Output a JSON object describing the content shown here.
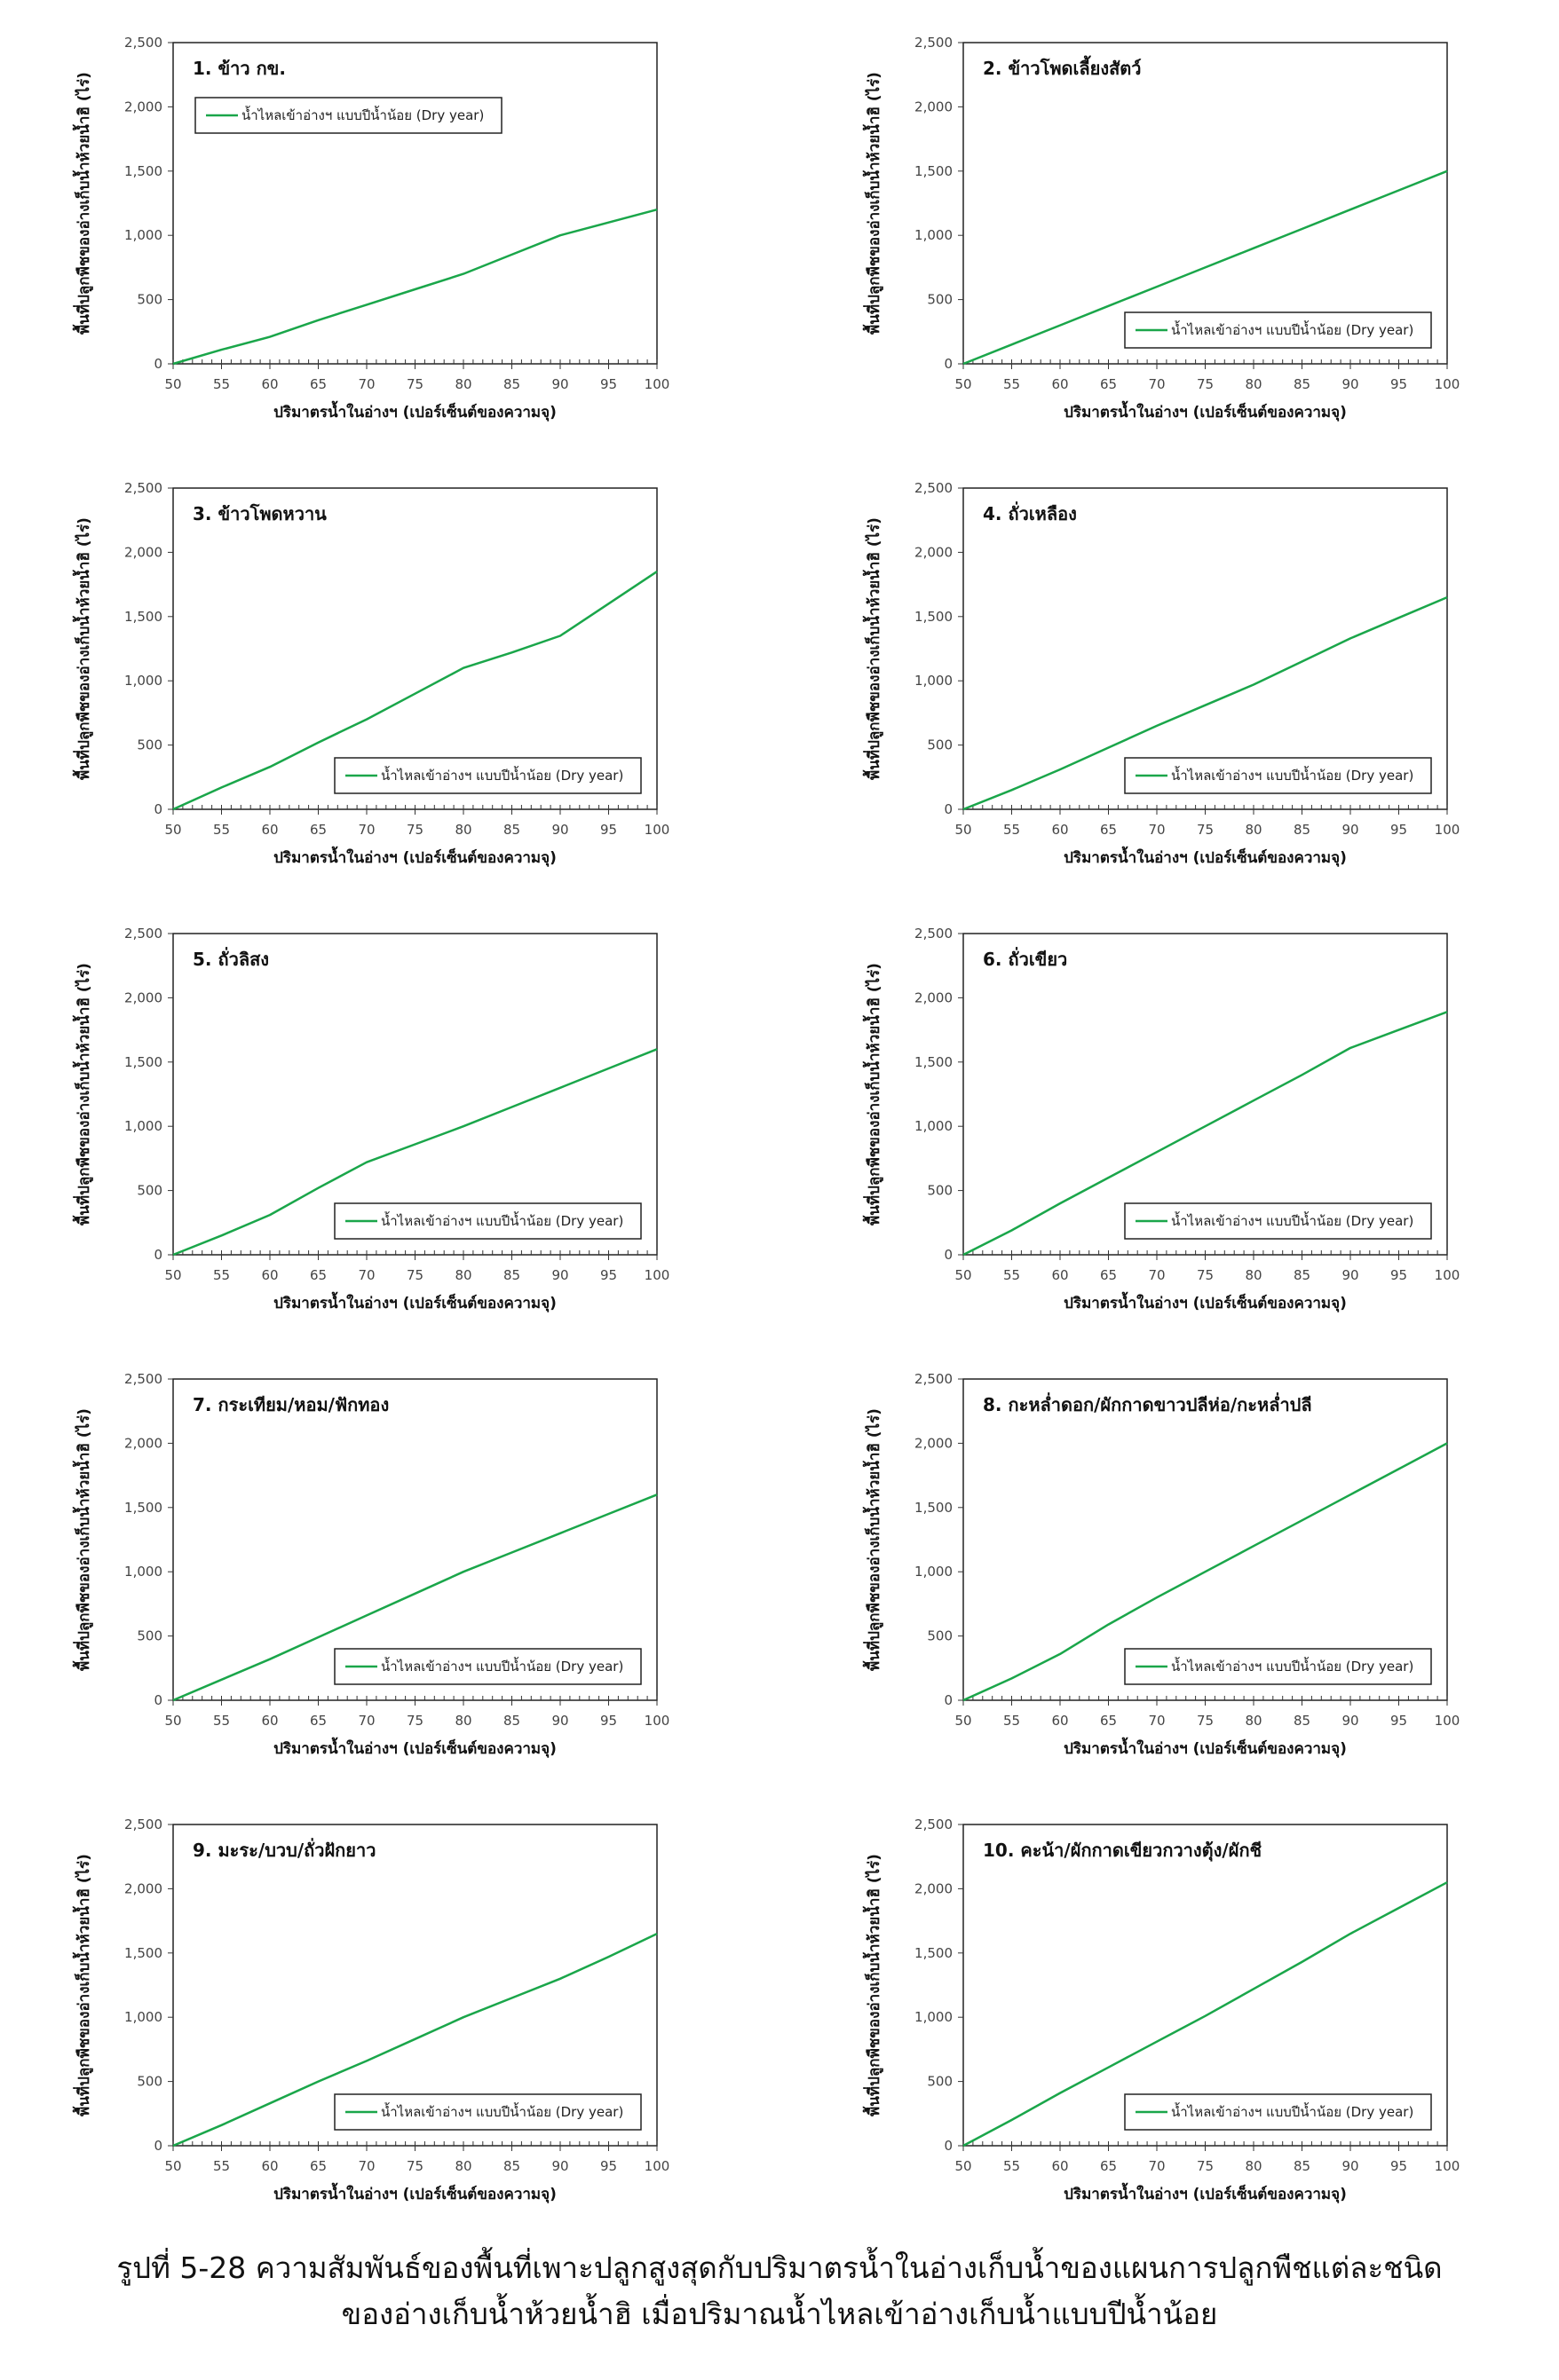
{
  "common": {
    "xlabel": "ปริมาตรน้ำในอ่างฯ (เปอร์เซ็นต์ของความจุ)",
    "ylabel": "พื้นที่ปลูกพืชของอ่างเก็บน้ำห้วยน้ำฮิ (ไร่)",
    "legend_label": "น้ำไหลเข้าอ่างฯ แบบปีน้ำน้อย (Dry year)",
    "line_color": "#1aa64a",
    "x_ticks": [
      "50",
      "55",
      "60",
      "65",
      "70",
      "75",
      "80",
      "85",
      "90",
      "95",
      "100"
    ],
    "y_ticks": [
      "0",
      "500",
      "1,000",
      "1,500",
      "2,000",
      "2,500"
    ]
  },
  "chart_data": [
    {
      "type": "line",
      "title": "1. ข้าว กข.",
      "legend_position": "top-left",
      "xlim": [
        50,
        100
      ],
      "ylim": [
        0,
        2500
      ],
      "x": [
        50,
        55,
        60,
        65,
        70,
        75,
        80,
        85,
        90,
        95,
        100
      ],
      "series": [
        {
          "name": "น้ำไหลเข้าอ่างฯ แบบปีน้ำน้อย (Dry year)",
          "values": [
            0,
            110,
            210,
            340,
            460,
            580,
            700,
            850,
            1000,
            1100,
            1200
          ]
        }
      ]
    },
    {
      "type": "line",
      "title": "2. ข้าวโพดเลี้ยงสัตว์",
      "legend_position": "bottom-right",
      "xlim": [
        50,
        100
      ],
      "ylim": [
        0,
        2500
      ],
      "x": [
        50,
        55,
        60,
        65,
        70,
        75,
        80,
        85,
        90,
        95,
        100
      ],
      "series": [
        {
          "name": "น้ำไหลเข้าอ่างฯ แบบปีน้ำน้อย (Dry year)",
          "values": [
            0,
            150,
            300,
            450,
            600,
            750,
            900,
            1050,
            1200,
            1350,
            1500
          ]
        }
      ]
    },
    {
      "type": "line",
      "title": "3. ข้าวโพดหวาน",
      "legend_position": "bottom-right",
      "xlim": [
        50,
        100
      ],
      "ylim": [
        0,
        2500
      ],
      "x": [
        50,
        55,
        60,
        65,
        70,
        75,
        80,
        85,
        90,
        95,
        100
      ],
      "series": [
        {
          "name": "น้ำไหลเข้าอ่างฯ แบบปีน้ำน้อย (Dry year)",
          "values": [
            0,
            170,
            330,
            520,
            700,
            900,
            1100,
            1220,
            1350,
            1600,
            1850
          ]
        }
      ]
    },
    {
      "type": "line",
      "title": "4. ถั่วเหลือง",
      "legend_position": "bottom-right",
      "xlim": [
        50,
        100
      ],
      "ylim": [
        0,
        2500
      ],
      "x": [
        50,
        55,
        60,
        65,
        70,
        75,
        80,
        85,
        90,
        95,
        100
      ],
      "series": [
        {
          "name": "น้ำไหลเข้าอ่างฯ แบบปีน้ำน้อย (Dry year)",
          "values": [
            0,
            150,
            310,
            480,
            650,
            810,
            970,
            1150,
            1330,
            1490,
            1650
          ]
        }
      ]
    },
    {
      "type": "line",
      "title": "5. ถั่วลิสง",
      "legend_position": "bottom-right",
      "xlim": [
        50,
        100
      ],
      "ylim": [
        0,
        2500
      ],
      "x": [
        50,
        55,
        60,
        65,
        70,
        75,
        80,
        85,
        90,
        95,
        100
      ],
      "series": [
        {
          "name": "น้ำไหลเข้าอ่างฯ แบบปีน้ำน้อย (Dry year)",
          "values": [
            0,
            150,
            310,
            520,
            720,
            860,
            1000,
            1150,
            1300,
            1450,
            1600
          ]
        }
      ]
    },
    {
      "type": "line",
      "title": "6. ถั่วเขียว",
      "legend_position": "bottom-right",
      "xlim": [
        50,
        100
      ],
      "ylim": [
        0,
        2500
      ],
      "x": [
        50,
        55,
        60,
        65,
        70,
        75,
        80,
        85,
        90,
        95,
        100
      ],
      "series": [
        {
          "name": "น้ำไหลเข้าอ่างฯ แบบปีน้ำน้อย (Dry year)",
          "values": [
            0,
            190,
            400,
            600,
            800,
            1000,
            1200,
            1400,
            1610,
            1750,
            1890
          ]
        }
      ]
    },
    {
      "type": "line",
      "title": "7. กระเทียม/หอม/ฟักทอง",
      "legend_position": "bottom-right",
      "xlim": [
        50,
        100
      ],
      "ylim": [
        0,
        2500
      ],
      "x": [
        50,
        55,
        60,
        65,
        70,
        75,
        80,
        85,
        90,
        95,
        100
      ],
      "series": [
        {
          "name": "น้ำไหลเข้าอ่างฯ แบบปีน้ำน้อย (Dry year)",
          "values": [
            0,
            160,
            320,
            490,
            660,
            830,
            1000,
            1150,
            1300,
            1450,
            1600
          ]
        }
      ]
    },
    {
      "type": "line",
      "title": "8. กะหล่ำดอก/ผักกาดขาวปลีห่อ/กะหล่ำปลี",
      "legend_position": "bottom-right",
      "xlim": [
        50,
        100
      ],
      "ylim": [
        0,
        2500
      ],
      "x": [
        50,
        55,
        60,
        65,
        70,
        75,
        80,
        85,
        90,
        95,
        100
      ],
      "series": [
        {
          "name": "น้ำไหลเข้าอ่างฯ แบบปีน้ำน้อย (Dry year)",
          "values": [
            0,
            170,
            360,
            590,
            800,
            1000,
            1200,
            1400,
            1600,
            1800,
            2000
          ]
        }
      ]
    },
    {
      "type": "line",
      "title": "9. มะระ/บวบ/ถั่วฝักยาว",
      "legend_position": "bottom-right",
      "xlim": [
        50,
        100
      ],
      "ylim": [
        0,
        2500
      ],
      "x": [
        50,
        55,
        60,
        65,
        70,
        75,
        80,
        85,
        90,
        95,
        100
      ],
      "series": [
        {
          "name": "น้ำไหลเข้าอ่างฯ แบบปีน้ำน้อย (Dry year)",
          "values": [
            0,
            160,
            330,
            500,
            660,
            830,
            1000,
            1150,
            1300,
            1470,
            1650
          ]
        }
      ]
    },
    {
      "type": "line",
      "title": "10. คะน้า/ผักกาดเขียวกวางตุ้ง/ผักชี",
      "legend_position": "bottom-right",
      "xlim": [
        50,
        100
      ],
      "ylim": [
        0,
        2500
      ],
      "x": [
        50,
        55,
        60,
        65,
        70,
        75,
        80,
        85,
        90,
        95,
        100
      ],
      "series": [
        {
          "name": "น้ำไหลเข้าอ่างฯ แบบปีน้ำน้อย (Dry year)",
          "values": [
            0,
            200,
            410,
            610,
            810,
            1010,
            1220,
            1430,
            1650,
            1850,
            2050
          ]
        }
      ]
    }
  ],
  "caption": {
    "line1": "รูปที่ 5-28 ความสัมพันธ์ของพื้นที่เพาะปลูกสูงสุดกับปริมาตรน้ำในอ่างเก็บน้ำของแผนการปลูกพืชแต่ละชนิด",
    "line2": "ของอ่างเก็บน้ำห้วยน้ำฮิ เมื่อปริมาณน้ำไหลเข้าอ่างเก็บน้ำแบบปีน้ำน้อย"
  }
}
